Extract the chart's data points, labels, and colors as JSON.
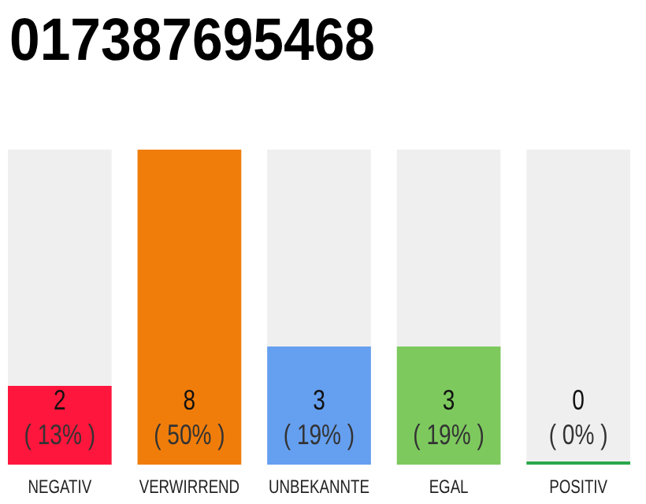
{
  "chart_data": {
    "type": "bar",
    "title": "017387695468",
    "categories": [
      "NEGATIV",
      "VERWIRREND",
      "UNBEKANNTE",
      "EGAL",
      "POSITIV"
    ],
    "values": [
      2,
      8,
      3,
      3,
      0
    ],
    "colors": [
      "#ff163c",
      "#f07d0a",
      "#659ff0",
      "#7dc95e",
      "#2aa84a"
    ],
    "value_labels": [
      "2\n( 13% )",
      "8\n( 50% )",
      "3\n( 19% )",
      "3\n( 19% )",
      "0\n( 0% )"
    ]
  }
}
